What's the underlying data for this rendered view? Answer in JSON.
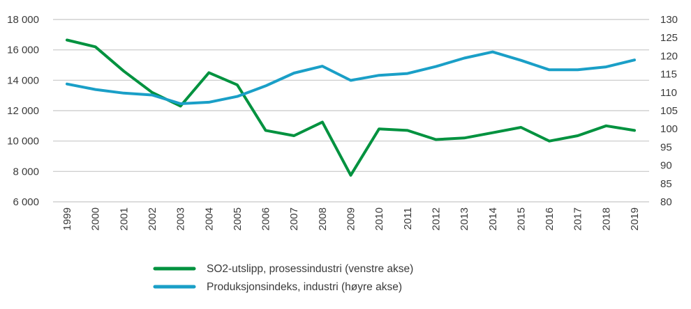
{
  "chart_data": {
    "type": "line",
    "title": "",
    "x": [
      "1999",
      "2000",
      "2001",
      "2002",
      "2003",
      "2004",
      "2005",
      "2006",
      "2007",
      "2008",
      "2009",
      "2010",
      "2011",
      "2012",
      "2013",
      "2014",
      "2015",
      "2016",
      "2017",
      "2018",
      "2019"
    ],
    "y_left": {
      "ticks": [
        "6 000",
        "8 000",
        "10 000",
        "12 000",
        "14 000",
        "16 000",
        "18 000"
      ],
      "range": [
        6000,
        18000
      ],
      "step": 2000
    },
    "y_right": {
      "ticks": [
        "80",
        "85",
        "90",
        "95",
        "100",
        "105",
        "110",
        "115",
        "120",
        "125",
        "130"
      ],
      "range": [
        80,
        130
      ],
      "step": 5
    },
    "series": [
      {
        "name": "SO2-utslipp, prosessindustri (venstre akse)",
        "axis": "left",
        "color": "#00923f",
        "values": [
          16650,
          16200,
          14600,
          13200,
          12300,
          14500,
          13700,
          10700,
          10350,
          11250,
          7750,
          10800,
          10700,
          10100,
          10200,
          10550,
          10900,
          10000,
          10350,
          11000,
          10700
        ]
      },
      {
        "name": "Produksjonsindeks, industri (høyre akse)",
        "axis": "right",
        "color": "#1a9fc7",
        "values": [
          112.3,
          110.8,
          109.8,
          109.3,
          106.9,
          107.3,
          108.9,
          111.8,
          115.3,
          117.2,
          113.3,
          114.7,
          115.2,
          117.1,
          119.4,
          121.1,
          118.8,
          116.2,
          116.2,
          117.0,
          118.9
        ]
      }
    ],
    "grid": true,
    "legend": "bottom-left"
  }
}
